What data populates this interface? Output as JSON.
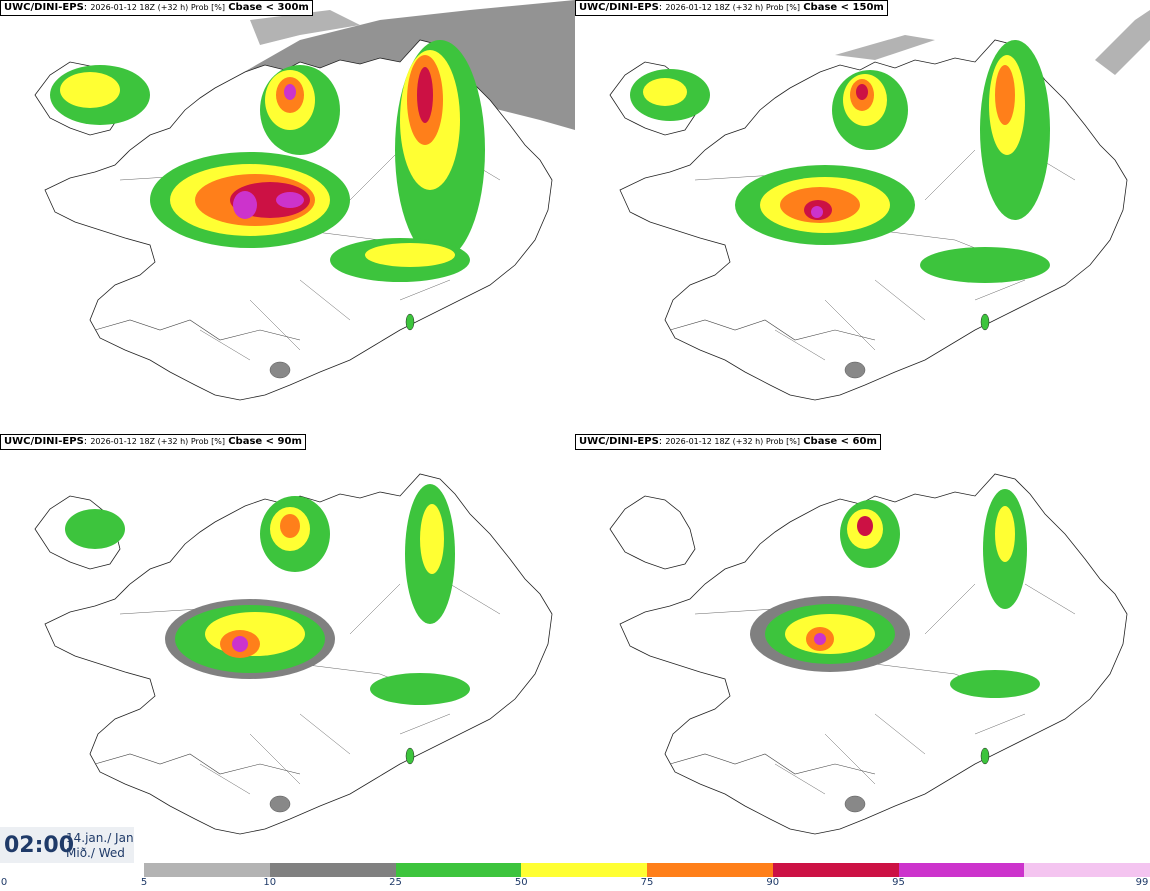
{
  "panels": [
    {
      "model": "UWC/DINI-EPS",
      "run": "2026-01-12 18Z (+32 h) Prob [%]",
      "threshold": "Cbase < 300m"
    },
    {
      "model": "UWC/DINI-EPS",
      "run": "2026-01-12 18Z (+32 h) Prob [%]",
      "threshold": "Cbase < 150m"
    },
    {
      "model": "UWC/DINI-EPS",
      "run": "2026-01-12 18Z (+32 h) Prob [%]",
      "threshold": "Cbase < 90m"
    },
    {
      "model": "UWC/DINI-EPS",
      "run": "2026-01-12 18Z (+32 h) Prob [%]",
      "threshold": "Cbase < 60m"
    }
  ],
  "valid_time": {
    "time": "02:00",
    "date": "14.jan./ Jan",
    "weekday": "Mið./ Wed"
  },
  "colorbar": {
    "ticks": [
      "0",
      "5",
      "10",
      "25",
      "50",
      "75",
      "90",
      "95",
      "99"
    ],
    "colors": [
      "#b3b3b3",
      "#808080",
      "#3dc43d",
      "#ffff33",
      "#ff7f1a",
      "#cc1144",
      "#cc33cc",
      "#f4c4f0"
    ]
  }
}
